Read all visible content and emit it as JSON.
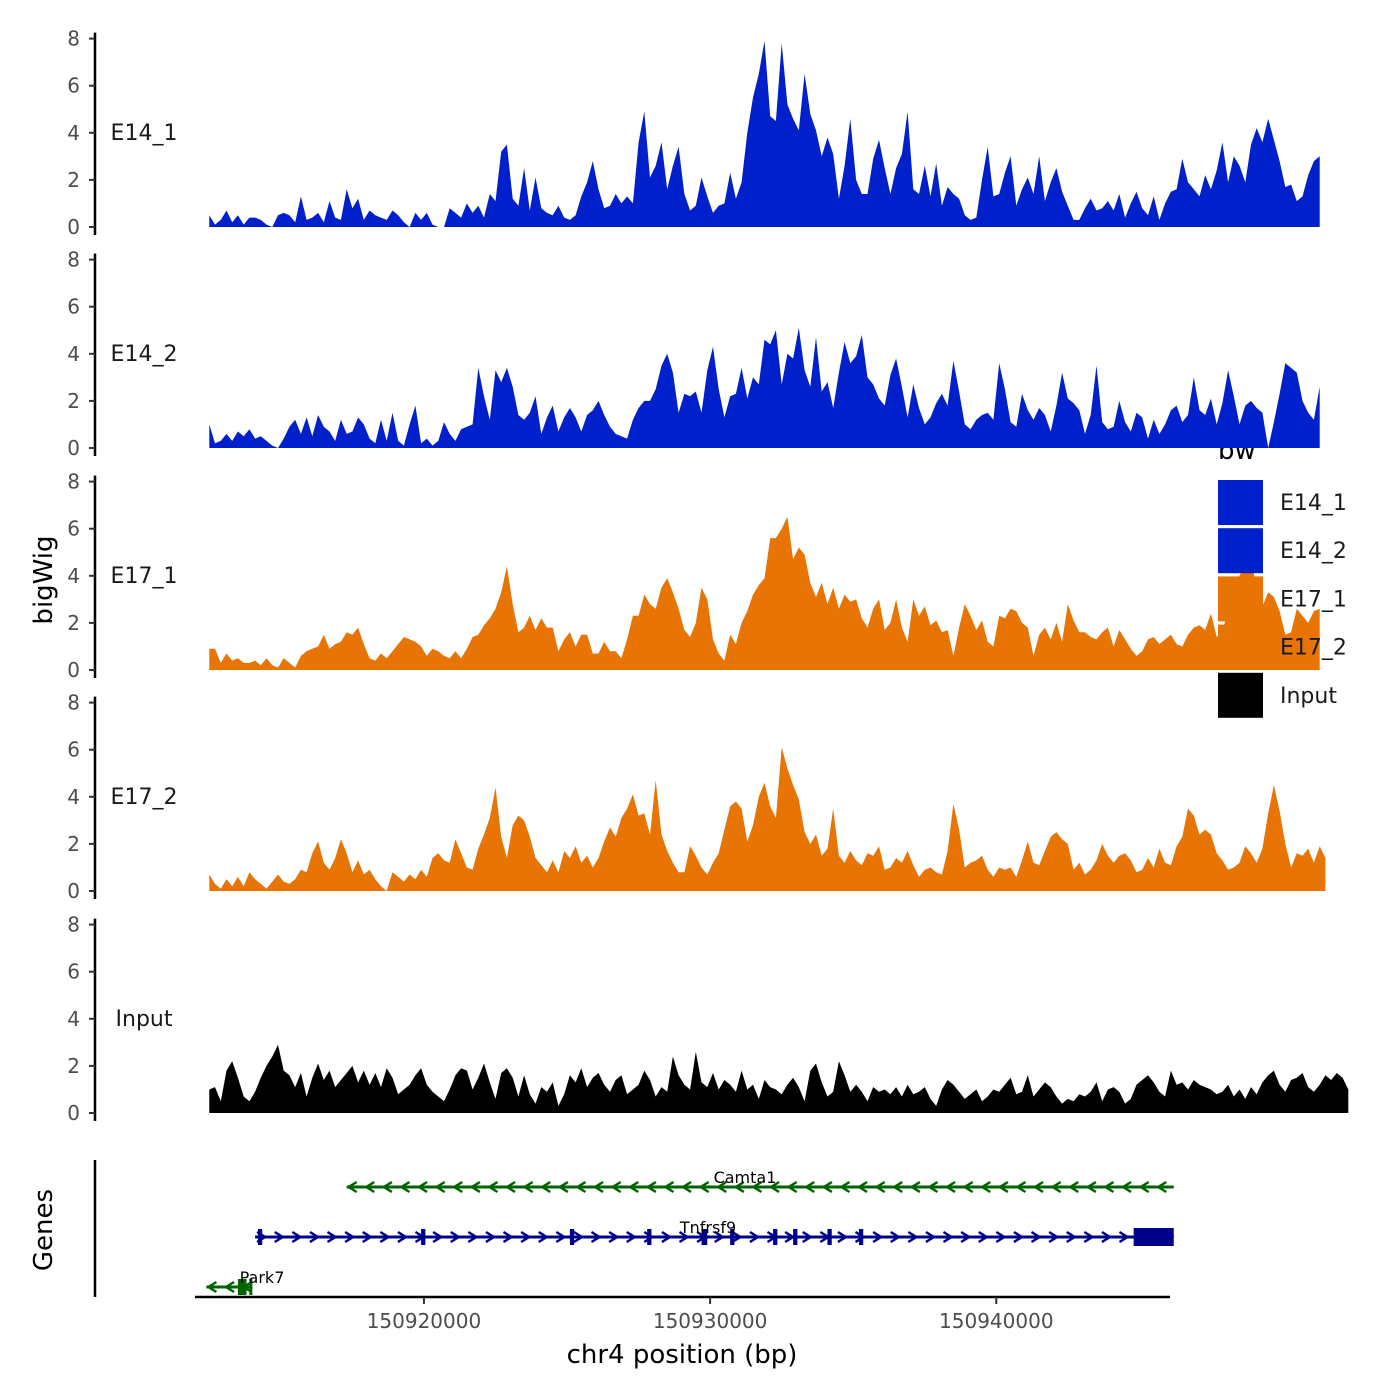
{
  "chart_data": {
    "type": "area",
    "title": "",
    "ylabel": "bigWig",
    "xlabel": "chr4 position (bp)",
    "genes_label": "Genes",
    "xlim": [
      150912000,
      150946000
    ],
    "ylim": [
      0,
      8
    ],
    "y_ticks": [
      "0",
      "2",
      "4",
      "6",
      "8"
    ],
    "x_ticks": [
      {
        "value": 150920000,
        "label": "150920000"
      },
      {
        "value": 150930000,
        "label": "150930000"
      },
      {
        "value": 150940000,
        "label": "150940000"
      }
    ],
    "legend": {
      "title": "bw",
      "position": "right",
      "entries": [
        {
          "name": "E14_1",
          "color": "#0020CC"
        },
        {
          "name": "E14_2",
          "color": "#0020CC"
        },
        {
          "name": "E17_1",
          "color": "#E87404"
        },
        {
          "name": "E17_2",
          "color": "#E87404"
        },
        {
          "name": "Input",
          "color": "#000000"
        }
      ]
    },
    "series": [
      {
        "name": "E14_1",
        "color": "#0020CC",
        "start": 150912500,
        "step": 200,
        "values": [
          0.5,
          0.1,
          0.3,
          0.7,
          0.2,
          0.5,
          0.1,
          0.4,
          0.4,
          0.3,
          0.1,
          0.0,
          0.5,
          0.6,
          0.5,
          0.2,
          1.3,
          0.3,
          0.4,
          0.6,
          0.2,
          1.1,
          0.4,
          0.3,
          1.6,
          0.8,
          1.2,
          0.3,
          0.7,
          0.5,
          0.4,
          0.3,
          0.7,
          0.5,
          0.2,
          0.0,
          0.6,
          0.3,
          0.6,
          0.1,
          0.0,
          0.0,
          0.8,
          0.6,
          0.4,
          1.0,
          0.6,
          0.9,
          0.4,
          1.4,
          1.1,
          3.2,
          3.5,
          1.2,
          0.9,
          2.5,
          0.7,
          2.1,
          0.8,
          0.6,
          0.5,
          0.9,
          0.4,
          0.3,
          0.5,
          1.3,
          1.9,
          2.8,
          1.6,
          0.8,
          0.9,
          1.4,
          1.0,
          1.3,
          1.0,
          3.6,
          4.9,
          2.1,
          2.6,
          3.6,
          1.6,
          2.6,
          3.4,
          1.4,
          0.7,
          0.9,
          2.1,
          1.3,
          0.6,
          0.9,
          1.0,
          2.3,
          1.2,
          1.9,
          4.0,
          5.5,
          6.5,
          7.9,
          4.7,
          4.5,
          7.8,
          5.2,
          4.6,
          4.1,
          6.5,
          4.8,
          4.1,
          3.0,
          3.8,
          3.1,
          1.2,
          2.6,
          4.6,
          2.0,
          1.4,
          1.4,
          2.9,
          3.7,
          2.5,
          1.4,
          2.5,
          3.1,
          4.9,
          1.6,
          1.4,
          2.6,
          1.3,
          2.7,
          0.9,
          1.7,
          1.4,
          1.2,
          0.5,
          0.3,
          0.4,
          2.0,
          3.4,
          1.3,
          1.4,
          2.3,
          3.0,
          0.9,
          1.6,
          2.1,
          1.4,
          3.0,
          1.1,
          1.9,
          2.5,
          1.5,
          0.9,
          0.3,
          0.3,
          0.8,
          1.2,
          0.7,
          0.8,
          1.1,
          0.7,
          1.4,
          0.4,
          1.0,
          1.5,
          0.8,
          0.5,
          1.3,
          0.3,
          1.0,
          1.5,
          1.6,
          2.9,
          1.9,
          1.6,
          1.3,
          2.2,
          1.6,
          2.4,
          3.6,
          1.9,
          3.0,
          2.6,
          1.9,
          3.5,
          4.2,
          3.6,
          4.6,
          3.7,
          2.8,
          1.7,
          1.8,
          1.1,
          1.3,
          2.2,
          2.8,
          3.0
        ]
      },
      {
        "name": "E14_2",
        "color": "#0020CC",
        "start": 150912500,
        "step": 200,
        "values": [
          1.0,
          0.2,
          0.3,
          0.6,
          0.3,
          0.7,
          0.5,
          0.8,
          0.4,
          0.5,
          0.3,
          0.1,
          0.0,
          0.4,
          0.9,
          1.2,
          0.6,
          1.3,
          0.5,
          1.4,
          0.9,
          0.7,
          0.3,
          1.2,
          0.6,
          0.7,
          1.3,
          1.0,
          0.4,
          0.2,
          1.2,
          0.3,
          1.5,
          0.3,
          0.1,
          1.0,
          1.8,
          0.2,
          0.4,
          0.1,
          0.3,
          1.1,
          0.6,
          0.3,
          0.8,
          0.9,
          1.0,
          3.4,
          2.2,
          1.2,
          3.3,
          2.8,
          3.4,
          2.6,
          1.4,
          1.2,
          1.5,
          2.2,
          0.6,
          1.3,
          1.8,
          0.7,
          1.3,
          1.7,
          1.3,
          0.7,
          1.4,
          1.6,
          2.0,
          1.4,
          0.9,
          0.6,
          0.5,
          0.4,
          1.2,
          1.7,
          2.0,
          2.0,
          2.5,
          3.5,
          4.0,
          3.2,
          1.5,
          2.3,
          2.2,
          2.4,
          1.5,
          3.3,
          4.3,
          2.5,
          1.3,
          2.2,
          2.3,
          3.4,
          2.1,
          3.0,
          2.7,
          4.6,
          4.4,
          5.0,
          2.7,
          4.0,
          3.8,
          5.1,
          3.3,
          2.6,
          4.7,
          2.4,
          2.8,
          1.7,
          3.2,
          4.5,
          3.6,
          3.9,
          4.8,
          3.0,
          2.7,
          2.1,
          1.8,
          3.1,
          3.8,
          2.6,
          1.3,
          2.7,
          1.7,
          1.0,
          1.3,
          1.9,
          2.3,
          1.8,
          3.7,
          2.4,
          1.0,
          0.8,
          1.2,
          1.4,
          1.5,
          1.2,
          3.6,
          2.5,
          1.1,
          0.9,
          2.3,
          1.6,
          1.2,
          1.7,
          1.4,
          0.7,
          1.8,
          3.2,
          2.1,
          1.9,
          1.6,
          0.6,
          1.4,
          3.5,
          1.1,
          0.8,
          0.9,
          2.0,
          1.1,
          0.7,
          1.5,
          1.3,
          0.4,
          1.2,
          0.6,
          1.0,
          1.6,
          1.8,
          1.1,
          1.4,
          3.0,
          1.6,
          1.4,
          2.1,
          1.0,
          1.9,
          3.3,
          2.2,
          1.0,
          1.8,
          2.0,
          1.7,
          1.5,
          0.0,
          1.1,
          2.3,
          3.6,
          3.4,
          3.2,
          2.0,
          1.5,
          1.2,
          2.6
        ]
      },
      {
        "name": "E17_1",
        "color": "#E87404",
        "start": 150912500,
        "step": 200,
        "values": [
          0.9,
          0.9,
          0.3,
          0.7,
          0.4,
          0.5,
          0.3,
          0.3,
          0.4,
          0.2,
          0.5,
          0.2,
          0.1,
          0.5,
          0.3,
          0.1,
          0.6,
          0.8,
          0.9,
          1.0,
          1.5,
          0.9,
          1.1,
          1.2,
          1.6,
          1.5,
          1.8,
          1.1,
          0.5,
          0.4,
          0.7,
          0.5,
          0.8,
          1.1,
          1.4,
          1.3,
          1.2,
          1.0,
          0.6,
          0.9,
          0.8,
          0.6,
          0.5,
          0.8,
          0.5,
          0.9,
          1.4,
          1.5,
          1.9,
          2.2,
          2.6,
          3.3,
          4.4,
          2.8,
          1.6,
          1.8,
          2.3,
          1.7,
          2.2,
          1.8,
          1.8,
          0.8,
          1.3,
          1.6,
          1.0,
          1.5,
          1.5,
          0.7,
          0.7,
          1.2,
          0.8,
          0.8,
          0.5,
          1.3,
          2.3,
          2.3,
          3.2,
          2.8,
          2.6,
          3.5,
          3.9,
          3.3,
          2.6,
          1.7,
          1.4,
          2.0,
          3.5,
          3.0,
          1.3,
          0.7,
          0.4,
          1.5,
          1.1,
          2.0,
          2.5,
          3.2,
          3.6,
          3.9,
          5.6,
          5.6,
          6.0,
          6.5,
          4.7,
          5.2,
          4.9,
          3.7,
          3.1,
          3.7,
          2.8,
          3.5,
          2.6,
          3.2,
          2.9,
          3.0,
          2.2,
          1.8,
          2.6,
          3.0,
          1.7,
          2.0,
          3.0,
          1.8,
          1.2,
          3.0,
          2.3,
          2.7,
          1.9,
          2.1,
          1.6,
          1.7,
          0.6,
          1.8,
          2.8,
          2.3,
          1.7,
          2.1,
          1.2,
          1.0,
          2.3,
          2.2,
          2.6,
          2.5,
          2.0,
          1.8,
          0.6,
          1.5,
          1.8,
          1.3,
          2.0,
          1.2,
          2.8,
          2.1,
          1.6,
          1.6,
          1.4,
          1.3,
          1.6,
          1.8,
          1.0,
          1.7,
          1.3,
          0.9,
          0.6,
          0.8,
          1.3,
          1.4,
          1.1,
          1.3,
          1.5,
          1.1,
          1.0,
          1.5,
          1.8,
          1.9,
          1.7,
          2.4,
          1.4,
          1.6,
          2.6,
          3.4,
          4.0,
          4.5,
          4.8,
          3.4,
          2.7,
          3.3,
          3.1,
          2.5,
          1.5,
          1.6,
          2.6,
          2.3,
          2.0,
          2.5,
          2.6
        ]
      },
      {
        "name": "E17_2",
        "color": "#E87404",
        "start": 150912500,
        "step": 200,
        "values": [
          0.7,
          0.3,
          0.1,
          0.5,
          0.2,
          0.6,
          0.2,
          0.8,
          0.5,
          0.3,
          0.1,
          0.4,
          0.7,
          0.4,
          0.3,
          0.5,
          0.9,
          0.8,
          1.6,
          2.1,
          1.2,
          0.9,
          1.4,
          2.2,
          1.6,
          0.8,
          1.3,
          0.7,
          0.9,
          0.5,
          0.2,
          0.0,
          0.8,
          0.6,
          0.4,
          0.7,
          0.5,
          0.9,
          0.6,
          1.4,
          1.6,
          1.3,
          1.2,
          2.2,
          1.6,
          1.0,
          0.9,
          1.8,
          2.4,
          3.1,
          4.4,
          2.3,
          1.4,
          2.8,
          3.2,
          3.0,
          2.3,
          1.4,
          1.1,
          0.8,
          1.3,
          0.8,
          1.7,
          1.4,
          1.9,
          1.2,
          1.5,
          1.0,
          1.4,
          2.1,
          2.7,
          2.3,
          3.1,
          3.5,
          4.1,
          3.2,
          3.3,
          2.4,
          4.7,
          2.4,
          1.7,
          1.2,
          0.8,
          0.8,
          1.9,
          1.5,
          1.0,
          0.7,
          1.2,
          1.6,
          2.6,
          3.6,
          3.8,
          3.5,
          2.1,
          2.8,
          4.0,
          4.6,
          3.6,
          3.1,
          6.1,
          5.2,
          4.5,
          3.9,
          2.5,
          2.0,
          2.4,
          1.5,
          1.8,
          3.5,
          1.5,
          1.2,
          1.7,
          1.3,
          1.1,
          1.6,
          1.5,
          1.9,
          0.9,
          1.0,
          1.4,
          1.2,
          1.7,
          1.1,
          0.6,
          0.9,
          1.0,
          0.8,
          0.7,
          1.7,
          3.7,
          2.6,
          1.0,
          1.2,
          1.3,
          1.5,
          0.9,
          0.6,
          1.0,
          0.9,
          1.0,
          0.6,
          1.3,
          2.1,
          1.2,
          1.1,
          1.7,
          2.3,
          2.5,
          2.2,
          2.0,
          0.9,
          1.2,
          0.7,
          0.9,
          1.3,
          2.0,
          1.5,
          1.2,
          1.5,
          1.6,
          1.3,
          0.8,
          0.9,
          1.4,
          1.0,
          1.8,
          1.2,
          1.1,
          1.9,
          2.3,
          3.5,
          3.2,
          2.4,
          2.6,
          2.4,
          1.6,
          1.3,
          0.9,
          1.0,
          1.2,
          1.9,
          1.6,
          1.2,
          1.8,
          3.3,
          4.5,
          3.4,
          2.0,
          1.0,
          1.6,
          1.5,
          1.8,
          1.2,
          1.9,
          1.4
        ]
      },
      {
        "name": "Input",
        "color": "#000000",
        "start": 150912500,
        "step": 200,
        "values": [
          1.0,
          1.1,
          0.5,
          1.8,
          2.2,
          1.5,
          0.7,
          0.5,
          0.9,
          1.5,
          2.0,
          2.4,
          2.9,
          1.8,
          1.6,
          1.1,
          1.7,
          0.7,
          1.5,
          2.1,
          1.4,
          1.8,
          1.1,
          1.4,
          1.7,
          2.0,
          1.3,
          1.8,
          1.2,
          1.7,
          1.1,
          1.9,
          1.5,
          0.8,
          1.0,
          1.2,
          1.6,
          1.9,
          1.2,
          0.9,
          0.7,
          0.5,
          1.0,
          1.6,
          1.9,
          1.8,
          1.0,
          1.5,
          2.1,
          1.3,
          0.6,
          1.7,
          1.9,
          1.5,
          0.7,
          1.6,
          0.8,
          0.4,
          1.1,
          0.9,
          1.3,
          0.3,
          0.8,
          1.6,
          1.3,
          1.9,
          1.1,
          1.5,
          1.7,
          1.2,
          0.9,
          1.4,
          1.6,
          0.8,
          1.0,
          1.2,
          1.8,
          1.4,
          0.7,
          1.1,
          0.9,
          2.4,
          1.6,
          1.2,
          1.0,
          2.6,
          1.3,
          1.1,
          1.7,
          1.0,
          1.4,
          1.2,
          0.9,
          1.8,
          1.0,
          1.2,
          0.6,
          1.4,
          1.1,
          1.0,
          0.8,
          1.2,
          1.5,
          1.1,
          0.5,
          1.8,
          2.1,
          1.3,
          0.7,
          0.9,
          2.2,
          1.6,
          0.9,
          1.2,
          0.9,
          0.5,
          1.1,
          0.9,
          1.0,
          0.8,
          1.1,
          0.7,
          1.2,
          0.8,
          0.9,
          1.1,
          0.6,
          0.3,
          1.0,
          1.4,
          1.2,
          0.9,
          0.6,
          0.8,
          1.0,
          0.5,
          0.7,
          1.0,
          0.9,
          1.2,
          1.5,
          0.8,
          0.9,
          1.6,
          0.7,
          1.0,
          1.3,
          1.1,
          0.7,
          0.4,
          0.6,
          0.5,
          0.8,
          0.7,
          0.9,
          1.3,
          0.5,
          1.0,
          1.1,
          0.9,
          0.4,
          0.6,
          1.2,
          1.4,
          1.6,
          1.3,
          0.9,
          0.7,
          1.8,
          1.2,
          1.3,
          1.0,
          1.4,
          1.2,
          1.1,
          1.0,
          0.8,
          0.9,
          1.2,
          0.7,
          1.0,
          0.6,
          1.1,
          0.8,
          1.3,
          1.6,
          1.8,
          1.2,
          0.9,
          1.4,
          1.5,
          1.7,
          1.1,
          0.9,
          1.2,
          1.6,
          1.4,
          1.7,
          1.5,
          1.0
        ]
      }
    ],
    "genes": [
      {
        "name": "Camta1",
        "strand": "-",
        "start": 150917300,
        "end": 150946200,
        "color": "#006400",
        "exons": []
      },
      {
        "name": "Tnfrsf9",
        "strand": "+",
        "start": 150914100,
        "end": 150946200,
        "color": "#00008B",
        "exons": [
          [
            150914200,
            150914350
          ],
          [
            150919900,
            150920050
          ],
          [
            150925100,
            150925250
          ],
          [
            150927800,
            150927950
          ],
          [
            150929700,
            150929900
          ],
          [
            150930700,
            150930850
          ],
          [
            150932200,
            150932350
          ],
          [
            150932900,
            150933050
          ],
          [
            150934100,
            150934250
          ],
          [
            150935200,
            150935350
          ],
          [
            150944800,
            150946200
          ]
        ]
      },
      {
        "name": "Park7",
        "strand": "-",
        "start": 150912400,
        "end": 150914000,
        "color": "#006400",
        "exons": [
          [
            150913500,
            150913800
          ],
          [
            150913900,
            150914000
          ]
        ]
      }
    ]
  }
}
